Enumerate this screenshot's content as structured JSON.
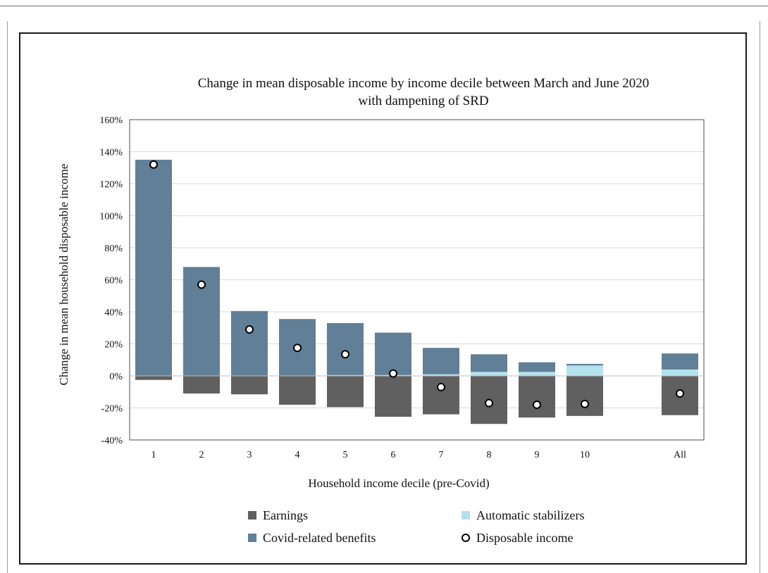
{
  "chart_data": {
    "type": "bar",
    "title": "Change in mean disposable income by income decile between March and June 2020",
    "subtitle": "with dampening of SRD",
    "xlabel": "Household income decile (pre-Covid)",
    "ylabel": "Change in mean household disposable income",
    "categories": [
      "1",
      "2",
      "3",
      "4",
      "5",
      "6",
      "7",
      "8",
      "9",
      "10",
      "All"
    ],
    "ylim": [
      -40,
      160
    ],
    "yticks": [
      "-40%",
      "-20%",
      "0%",
      "20%",
      "40%",
      "60%",
      "80%",
      "100%",
      "120%",
      "140%",
      "160%"
    ],
    "grid": true,
    "legend_position": "bottom",
    "series": [
      {
        "name": "Earnings",
        "kind": "bar",
        "color": "#606060",
        "values": [
          -2.5,
          -11,
          -11.5,
          -18,
          -19.5,
          -25.5,
          -24,
          -30,
          -26,
          -25,
          -24.5
        ]
      },
      {
        "name": "Automatic stabilizers",
        "kind": "bar",
        "color": "#b4e1ee",
        "values": [
          0,
          0,
          0,
          0,
          0.5,
          0.5,
          1,
          2.5,
          2.5,
          6.5,
          4
        ]
      },
      {
        "name": "Covid-related benefits",
        "kind": "bar",
        "color": "#617f96",
        "values": [
          135,
          68,
          40.5,
          35.5,
          32.5,
          26.5,
          16.5,
          11,
          6,
          1,
          10
        ]
      },
      {
        "name": "Disposable income",
        "kind": "marker",
        "color": "#ffffff",
        "values": [
          132,
          57,
          29,
          17.5,
          13.5,
          1.5,
          -7,
          -17,
          -18,
          -17.5,
          -11
        ]
      }
    ]
  }
}
